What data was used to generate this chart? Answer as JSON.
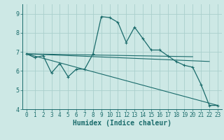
{
  "xlabel": "Humidex (Indice chaleur)",
  "background_color": "#cde8e5",
  "grid_color": "#aacfcc",
  "line_color": "#1a6b6b",
  "xlim": [
    -0.5,
    23.5
  ],
  "ylim": [
    4,
    9.5
  ],
  "yticks": [
    4,
    5,
    6,
    7,
    8,
    9
  ],
  "xticks": [
    0,
    1,
    2,
    3,
    4,
    5,
    6,
    7,
    8,
    9,
    10,
    11,
    12,
    13,
    14,
    15,
    16,
    17,
    18,
    19,
    20,
    21,
    22,
    23
  ],
  "series1_x": [
    0,
    1,
    2,
    3,
    4,
    5,
    6,
    7,
    8,
    9,
    10,
    11,
    12,
    13,
    14,
    15,
    16,
    17,
    18,
    19,
    20,
    21,
    22,
    23
  ],
  "series1_y": [
    6.9,
    6.7,
    6.8,
    5.9,
    6.4,
    5.7,
    6.1,
    6.1,
    6.9,
    8.85,
    8.8,
    8.55,
    7.5,
    8.3,
    7.7,
    7.1,
    7.1,
    6.8,
    6.5,
    6.3,
    6.2,
    5.3,
    4.2,
    4.2
  ],
  "series2_x": [
    0,
    20
  ],
  "series2_y": [
    6.9,
    6.75
  ],
  "series3_x": [
    0,
    22
  ],
  "series3_y": [
    6.9,
    6.5
  ],
  "series4_x": [
    0,
    23
  ],
  "series4_y": [
    6.9,
    4.2
  ],
  "tick_fontsize": 5.5,
  "xlabel_fontsize": 7
}
